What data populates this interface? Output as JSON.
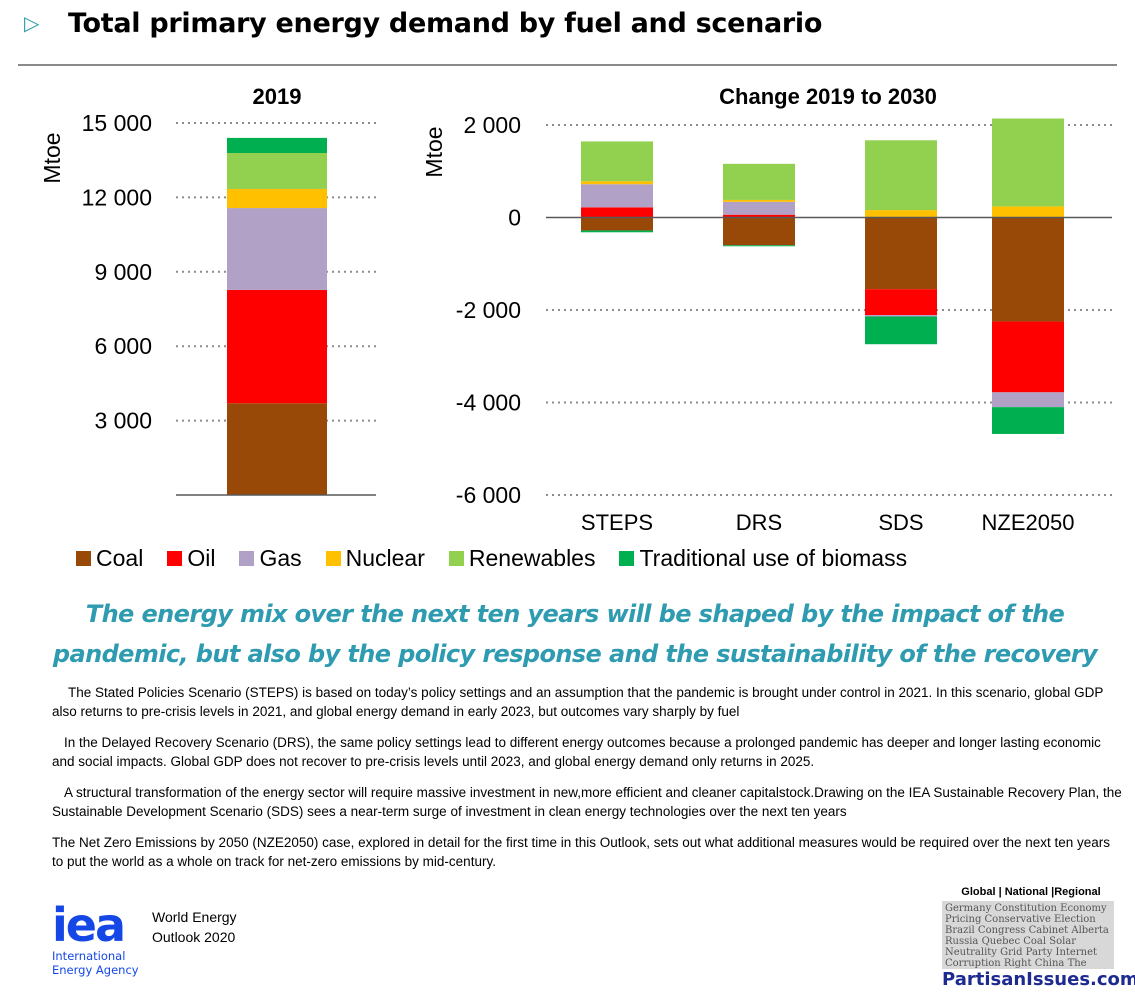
{
  "header": {
    "marker_icon": "triangle-right-outline",
    "title": "Total primary energy demand by fuel and scenario"
  },
  "colors": {
    "accent": "#2E9BB0",
    "coal": "#984807",
    "oil": "#FF0000",
    "gas": "#B2A1C7",
    "nuclear": "#FFC000",
    "renewables": "#92D050",
    "biomass": "#00B050",
    "iea_blue": "#1447E6"
  },
  "chart_data": [
    {
      "type": "bar",
      "stacked": true,
      "title": "2019",
      "ylabel": "Mtoe",
      "xlabel": "",
      "ylim": [
        0,
        15000
      ],
      "yticks": [
        3000,
        6000,
        9000,
        12000,
        15000
      ],
      "ytick_labels": [
        "3 000",
        "6 000",
        "9 000",
        "12 000",
        "15 000"
      ],
      "grid": true,
      "categories": [
        "2019"
      ],
      "series": [
        {
          "name": "Coal",
          "values": [
            3700
          ]
        },
        {
          "name": "Oil",
          "values": [
            4570
          ]
        },
        {
          "name": "Gas",
          "values": [
            3300
          ]
        },
        {
          "name": "Nuclear",
          "values": [
            770
          ]
        },
        {
          "name": "Renewables",
          "values": [
            1450
          ]
        },
        {
          "name": "Traditional use of biomass",
          "values": [
            610
          ]
        }
      ]
    },
    {
      "type": "bar",
      "stacked": true,
      "title": "Change 2019 to 2030",
      "ylabel": "Mtoe",
      "xlabel": "",
      "ylim": [
        -6000,
        2000
      ],
      "yticks": [
        -6000,
        -4000,
        -2000,
        0,
        2000
      ],
      "ytick_labels": [
        "-6 000",
        "-4 000",
        "-2 000",
        "0",
        "2 000"
      ],
      "grid": true,
      "categories": [
        "STEPS",
        "DRS",
        "SDS",
        "NZE2050"
      ],
      "series": [
        {
          "name": "Coal",
          "values": [
            -280,
            -600,
            -1550,
            -2250
          ]
        },
        {
          "name": "Oil",
          "values": [
            220,
            60,
            -560,
            -1530
          ]
        },
        {
          "name": "Gas",
          "values": [
            500,
            280,
            -30,
            -320
          ]
        },
        {
          "name": "Nuclear",
          "values": [
            65,
            40,
            160,
            240
          ]
        },
        {
          "name": "Renewables",
          "values": [
            860,
            780,
            1510,
            1900
          ]
        },
        {
          "name": "Traditional use of biomass",
          "values": [
            -40,
            -5,
            -600,
            -580
          ]
        }
      ]
    }
  ],
  "legend": {
    "placement": "bottom",
    "items": [
      {
        "label": "Coal",
        "color": "#984807"
      },
      {
        "label": "Oil",
        "color": "#FF0000"
      },
      {
        "label": "Gas",
        "color": "#B2A1C7"
      },
      {
        "label": "Nuclear",
        "color": "#FFC000"
      },
      {
        "label": "Renewables",
        "color": "#92D050"
      },
      {
        "label": "Traditional use of biomass",
        "color": "#00B050"
      }
    ]
  },
  "subtitle": "The energy mix over the next ten years will be shaped by the impact of the pandemic, but also by the policy response and the sustainability of the recovery",
  "paragraphs": [
    "The Stated Policies Scenario (STEPS) is based on today’s policy settings and an assumption that the pandemic is brought under control in 2021. In this scenario, global GDP also returns to pre-crisis levels in 2021, and global energy demand in early 2023, but outcomes vary sharply by fuel",
    "In the Delayed Recovery Scenario (DRS), the same policy settings lead to different energy outcomes because a prolonged pandemic has deeper and longer lasting economic and social impacts. Global GDP does not recover to pre-crisis levels until 2023, and global energy demand only returns in 2025.",
    "A structural transformation of the energy sector will require massive investment in new,more efficient and cleaner capitalstock.Drawing on the IEA Sustainable Recovery Plan, the Sustainable Development Scenario (SDS) sees a near-term surge of investment in clean energy technologies over the next ten years",
    "The Net Zero Emissions by 2050 (NZE2050) case, explored in detail for the first time in this Outlook, sets out what additional measures would be required over the next ten years to put the world as a whole on track for net-zero emissions by mid-century."
  ],
  "footer": {
    "iea_mark": "iea",
    "iea_name_line1": "International",
    "iea_name_line2": "Energy Agency",
    "weo_line1": "World Energy",
    "weo_line2": "Outlook 2020",
    "watermark_heading": "Global | National |Regional",
    "watermark_words": "Germany Constitution Economy Pricing Conservative Election Brazil Congress Cabinet Alberta Russia Quebec Coal Solar Neutrality Grid Party Internet Corruption Right China The Grid Green Interest Clean Coal",
    "watermark_url": "PartisanIssues.com"
  }
}
